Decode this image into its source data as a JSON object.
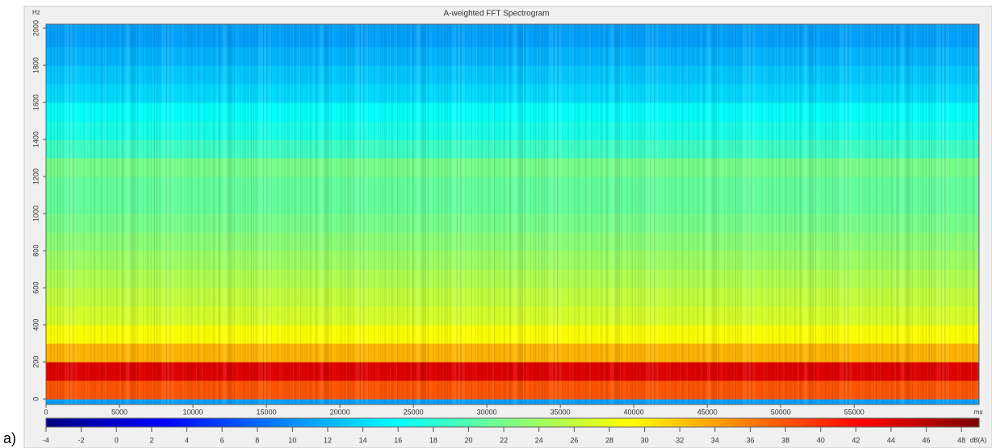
{
  "chart_data": {
    "type": "heatmap",
    "title": "A-weighted FFT Spectrogram",
    "panel_label": "a)",
    "x_unit": "ms",
    "y_unit": "Hz",
    "colorbar_unit": "dB(A)",
    "colormap": "jet",
    "xlim": [
      0,
      63500
    ],
    "xticks": [
      0,
      5000,
      10000,
      15000,
      20000,
      25000,
      30000,
      35000,
      40000,
      45000,
      50000,
      55000
    ],
    "ylim": [
      -30,
      2022
    ],
    "yticks": [
      0,
      200,
      400,
      600,
      800,
      1000,
      1200,
      1400,
      1600,
      1800,
      2000
    ],
    "y_bins": [
      0,
      100,
      200,
      300,
      400,
      500,
      600,
      700,
      800,
      900,
      1000,
      1100,
      1200,
      1300,
      1400,
      1500,
      1600,
      1700,
      1800,
      1900,
      2000
    ],
    "values": [
      38,
      44,
      33,
      29,
      27,
      26,
      25,
      24,
      23,
      22,
      21,
      21,
      22,
      19,
      17,
      16,
      14,
      13,
      12,
      11
    ],
    "clim": [
      -4,
      49
    ],
    "cticks": [
      -4,
      -2,
      0,
      2,
      4,
      6,
      8,
      10,
      12,
      14,
      16,
      18,
      20,
      22,
      24,
      26,
      28,
      30,
      32,
      34,
      36,
      38,
      40,
      42,
      44,
      46,
      48
    ]
  }
}
